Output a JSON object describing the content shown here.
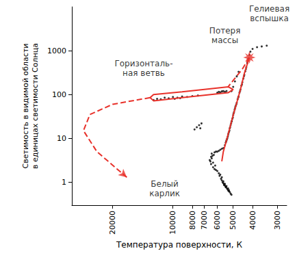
{
  "chart_data": {
    "type": "scatter",
    "xlabel": "Температура поверхности, К",
    "ylabel": "Светимость в видимой области\nв единицах светимости Солнца",
    "log": true,
    "grid": false,
    "xlim": [
      32000,
      2700
    ],
    "xticks": [
      20000,
      10000,
      8000,
      7000,
      6000,
      5000,
      4000,
      3000
    ],
    "ylim": [
      0.3,
      10000
    ],
    "yticks": [
      1,
      10,
      100,
      1000
    ],
    "series": [
      {
        "type": "scatter",
        "marker": "circle",
        "color": "#000000",
        "x": [
          5900,
          5850,
          5800,
          5750,
          5700,
          5650,
          5600,
          5550,
          5500,
          5450,
          5400,
          5350,
          5300,
          5250,
          5200,
          5150,
          5100,
          5700,
          5600,
          5500,
          5400,
          5300,
          5550,
          5450,
          5250,
          6400,
          6500,
          6450,
          6300,
          6200,
          6100,
          6000,
          6350,
          6450,
          6550,
          6300,
          6250,
          6400,
          6150,
          6200,
          6100,
          6000,
          5900,
          5800,
          5700,
          5600,
          5500,
          5450,
          5400,
          5350,
          5300,
          5250,
          5200,
          5150,
          5100,
          5050,
          5000,
          4950,
          4900,
          4850,
          4800,
          4750,
          4700,
          4650,
          4600,
          4550,
          4500,
          4450,
          4400,
          4350,
          4300,
          4250,
          4200,
          4150,
          4100,
          4000,
          3800,
          3600,
          3400,
          5420,
          5320,
          5220,
          5120,
          5020,
          4920,
          4820,
          4720,
          4620,
          4520,
          4420,
          4320,
          5380,
          5280,
          5180,
          5080,
          4980,
          4880,
          5000,
          4900,
          4800,
          5100,
          4700,
          12000,
          11000,
          10500,
          10000,
          9500,
          9000,
          8500,
          8000,
          11500,
          12500,
          9800,
          9200,
          7500,
          6000,
          5900,
          5800,
          5700,
          5600,
          5500,
          5400,
          7600,
          7400,
          7200,
          7800,
          7300
        ],
        "values": [
          1.6,
          1.4,
          1.5,
          1.2,
          1.1,
          1.0,
          0.95,
          0.9,
          0.85,
          0.8,
          0.75,
          0.7,
          0.65,
          0.62,
          0.6,
          0.55,
          0.52,
          1.3,
          1.05,
          0.92,
          0.82,
          0.72,
          0.86,
          0.78,
          0.66,
          3.5,
          3,
          2.6,
          2.2,
          2,
          1.9,
          1.8,
          4,
          3.8,
          3.2,
          2.8,
          4.2,
          4.5,
          2.4,
          4.8,
          5,
          5,
          5.2,
          5.5,
          5.8,
          6,
          7,
          8,
          9,
          10,
          12,
          14,
          17,
          20,
          24,
          28,
          34,
          40,
          48,
          56,
          65,
          78,
          90,
          110,
          130,
          160,
          190,
          230,
          280,
          340,
          420,
          520,
          650,
          800,
          950,
          1100,
          1200,
          1250,
          1300,
          8.5,
          11,
          15,
          22,
          30,
          45,
          60,
          85,
          120,
          170,
          260,
          380,
          9.5,
          13,
          18,
          25,
          37,
          52,
          150,
          200,
          260,
          120,
          330,
          80,
          85,
          82,
          88,
          85,
          90,
          88,
          92,
          78,
          75,
          80,
          83,
          95,
          110,
          115,
          112,
          118,
          120,
          115,
          120,
          18,
          20,
          22,
          16,
          17
        ]
      },
      {
        "type": "line",
        "line_style": "solid",
        "color": "#e8312a",
        "x": [
          5700,
          5600,
          5400,
          5200,
          5000,
          4800,
          4600,
          4400,
          4150
        ],
        "values": [
          3,
          5,
          9,
          17,
          34,
          65,
          130,
          300,
          700
        ]
      },
      {
        "type": "scatter",
        "marker": "star",
        "color": "#e8312a",
        "x": [
          4150
        ],
        "values": [
          700
        ]
      },
      {
        "type": "line",
        "line_style": "dashed",
        "color": "#e8312a",
        "x": [
          4150,
          4500,
          5000,
          5300
        ],
        "values": [
          700,
          380,
          210,
          150
        ]
      },
      {
        "type": "line",
        "line_style": "solid",
        "color": "#e8312a",
        "x": [
          5300,
          9000,
          12500,
          13000,
          12500,
          9000,
          5300,
          5000,
          5300
        ],
        "values": [
          150,
          115,
          100,
          85,
          72,
          85,
          110,
          130,
          150
        ]
      },
      {
        "type": "line",
        "line_style": "dashed",
        "marker": "arrow",
        "color": "#e8312a",
        "x": [
          13000,
          20000,
          26000,
          28000,
          24000,
          19000,
          17000
        ],
        "values": [
          85,
          60,
          35,
          15,
          5,
          2,
          1.3
        ]
      }
    ],
    "annotations": [
      {
        "text": "Гелиевая\nвспышка",
        "x": 3300,
        "y": 7000
      },
      {
        "text": "Потеря\nмассы",
        "x": 5500,
        "y": 2250
      },
      {
        "text": "Горизонталь-\nная ветвь",
        "x": 14000,
        "y": 400
      },
      {
        "text": "Белый\nкарлик",
        "x": 11000,
        "y": 0.7
      }
    ]
  }
}
